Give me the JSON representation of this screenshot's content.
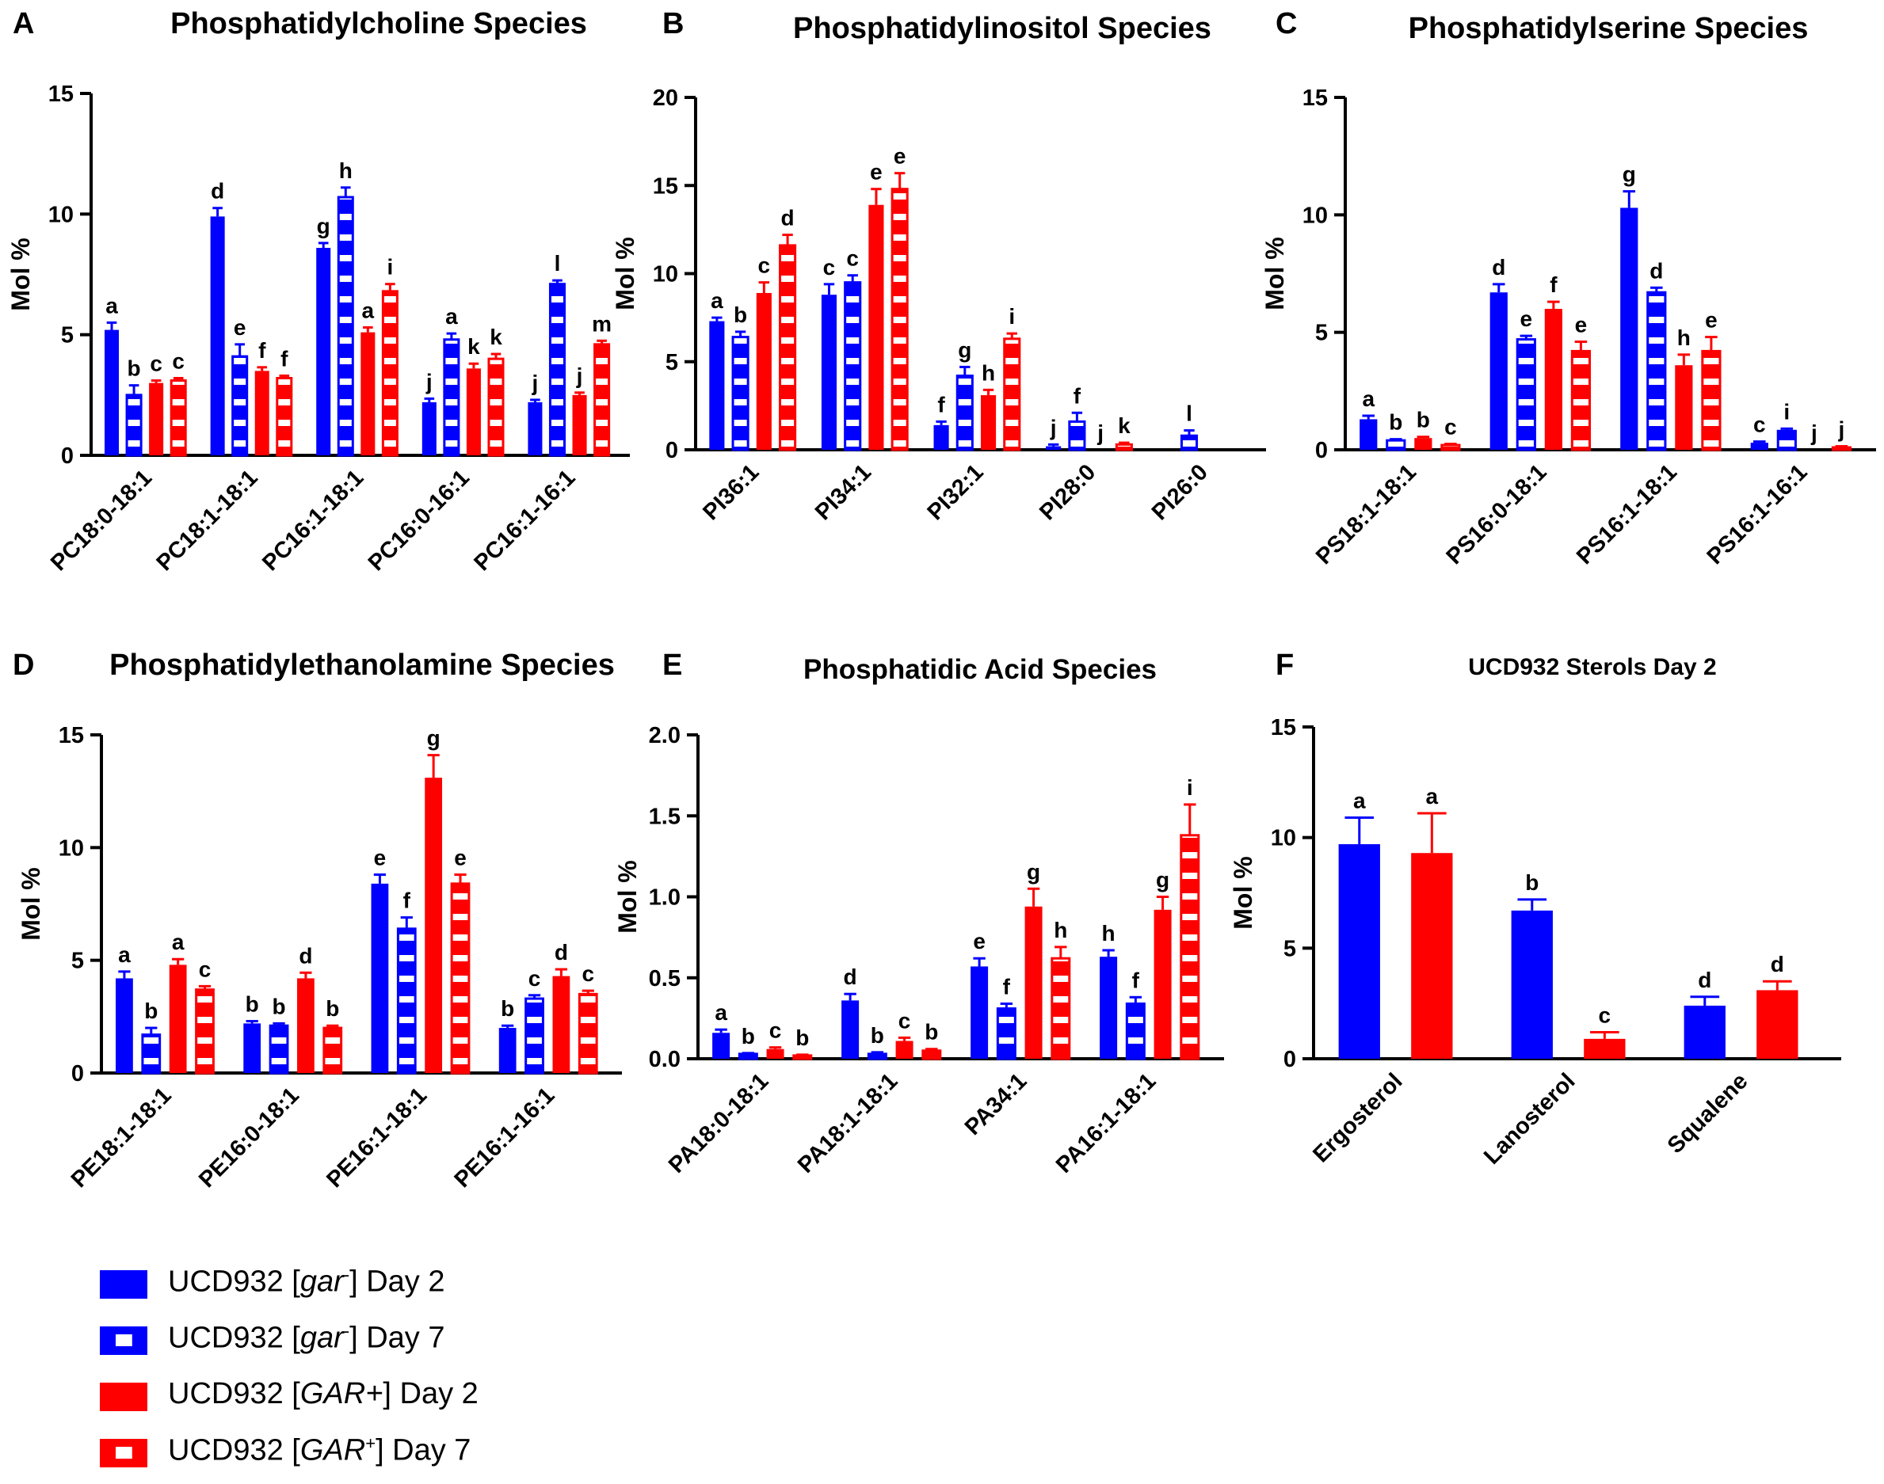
{
  "colors": {
    "blue": "#0000ff",
    "red": "#ff0000",
    "axis": "#000000"
  },
  "legend": [
    {
      "label_pre": "UCD932 [",
      "label_em": "gar",
      "label_sup": "-",
      "label_post": "] Day 2",
      "color": "#0000ff",
      "pattern": "solid"
    },
    {
      "label_pre": "UCD932 [",
      "label_em": "gar",
      "label_sup": "-",
      "label_post": "] Day 7",
      "color": "#0000ff",
      "pattern": "dashed"
    },
    {
      "label_pre": "UCD932 [",
      "label_em": "GAR+",
      "label_sup": "",
      "label_post": "] Day 2",
      "color": "#ff0000",
      "pattern": "solid"
    },
    {
      "label_pre": "UCD932 [",
      "label_em": "GAR",
      "label_sup": "+",
      "label_post": "] Day 7",
      "color": "#ff0000",
      "pattern": "dashed"
    }
  ],
  "chart_data": [
    {
      "panel": "A",
      "type": "bar",
      "title": "Phosphatidylcholine Species",
      "ylabel": "Mol %",
      "ylim": [
        0,
        15
      ],
      "yticks": [
        "0",
        "5",
        "10",
        "15"
      ],
      "categories": [
        "PC18:0-18:1",
        "PC18:1-18:1",
        "PC16:1-18:1",
        "PC16:0-16:1",
        "PC16:1-16:1"
      ],
      "series": [
        {
          "name": "UCD932 [gar-] Day 2",
          "values": [
            5.2,
            9.9,
            8.6,
            2.2,
            2.2
          ],
          "errors": [
            0.3,
            0.35,
            0.2,
            0.15,
            0.1
          ],
          "letters": [
            "a",
            "d",
            "g",
            "j",
            "j"
          ]
        },
        {
          "name": "UCD932 [gar-] Day 7",
          "values": [
            2.5,
            4.1,
            10.7,
            4.8,
            7.1
          ],
          "errors": [
            0.4,
            0.5,
            0.4,
            0.25,
            0.15
          ],
          "letters": [
            "b",
            "e",
            "h",
            "a",
            "l"
          ]
        },
        {
          "name": "UCD932 [GAR+] Day 2",
          "values": [
            3.0,
            3.5,
            5.1,
            3.6,
            2.5
          ],
          "errors": [
            0.1,
            0.15,
            0.2,
            0.2,
            0.1
          ],
          "letters": [
            "c",
            "f",
            "a",
            "k",
            "j"
          ]
        },
        {
          "name": "UCD932 [GAR+] Day 7",
          "values": [
            3.1,
            3.2,
            6.8,
            4.0,
            4.6
          ],
          "errors": [
            0.1,
            0.1,
            0.3,
            0.2,
            0.15
          ],
          "letters": [
            "c",
            "f",
            "i",
            "k",
            "m"
          ]
        }
      ]
    },
    {
      "panel": "B",
      "type": "bar",
      "title": "Phosphatidylinositol Species",
      "ylabel": "Mol %",
      "ylim": [
        0,
        20
      ],
      "yticks": [
        "0",
        "5",
        "10",
        "15",
        "20"
      ],
      "categories": [
        "PI36:1",
        "PI34:1",
        "PI32:1",
        "PI28:0",
        "PI26:0"
      ],
      "series": [
        {
          "name": "UCD932 [gar-] Day 2",
          "values": [
            7.3,
            8.8,
            1.4,
            0.2,
            0
          ],
          "errors": [
            0.2,
            0.6,
            0.2,
            0.1,
            0
          ],
          "letters": [
            "a",
            "c",
            "f",
            "j",
            ""
          ]
        },
        {
          "name": "UCD932 [gar-] Day 7",
          "values": [
            6.4,
            9.5,
            4.2,
            1.6,
            0.8
          ],
          "errors": [
            0.3,
            0.4,
            0.5,
            0.5,
            0.3
          ],
          "letters": [
            "b",
            "c",
            "g",
            "f",
            "l"
          ]
        },
        {
          "name": "UCD932 [GAR+] Day 2",
          "values": [
            8.9,
            13.9,
            3.1,
            0,
            0
          ],
          "errors": [
            0.6,
            0.9,
            0.3,
            0,
            0
          ],
          "letters": [
            "c",
            "e",
            "h",
            "j",
            ""
          ]
        },
        {
          "name": "UCD932 [GAR+] Day 7",
          "values": [
            11.6,
            14.8,
            6.3,
            0.3,
            0
          ],
          "errors": [
            0.6,
            0.9,
            0.3,
            0.1,
            0
          ],
          "letters": [
            "d",
            "e",
            "i",
            "k",
            ""
          ]
        }
      ]
    },
    {
      "panel": "C",
      "type": "bar",
      "title": "Phosphatidylserine Species",
      "ylabel": "Mol %",
      "ylim": [
        0,
        15
      ],
      "yticks": [
        "0",
        "5",
        "10",
        "15"
      ],
      "categories": [
        "PS18:1-18:1",
        "PS16:0-18:1",
        "PS16:1-18:1",
        "PS16:1-16:1"
      ],
      "series": [
        {
          "name": "UCD932 [gar-] Day 2",
          "values": [
            1.3,
            6.7,
            10.3,
            0.3
          ],
          "errors": [
            0.15,
            0.35,
            0.7,
            0.05
          ],
          "letters": [
            "a",
            "d",
            "g",
            "c"
          ]
        },
        {
          "name": "UCD932 [gar-] Day 7",
          "values": [
            0.4,
            4.7,
            6.7,
            0.8
          ],
          "errors": [
            0.05,
            0.15,
            0.2,
            0.1
          ],
          "letters": [
            "b",
            "e",
            "d",
            "i"
          ]
        },
        {
          "name": "UCD932 [GAR+] Day 2",
          "values": [
            0.5,
            6.0,
            3.6,
            0
          ],
          "errors": [
            0.05,
            0.3,
            0.45,
            0
          ],
          "letters": [
            "b",
            "f",
            "h",
            "j"
          ]
        },
        {
          "name": "UCD932 [GAR+] Day 7",
          "values": [
            0.2,
            4.2,
            4.2,
            0.1
          ],
          "errors": [
            0.05,
            0.4,
            0.6,
            0.05
          ],
          "letters": [
            "c",
            "e",
            "e",
            "j"
          ]
        }
      ]
    },
    {
      "panel": "D",
      "type": "bar",
      "title": "Phosphatidylethanolamine Species",
      "ylabel": "Mol %",
      "ylim": [
        0,
        15
      ],
      "yticks": [
        "0",
        "5",
        "10",
        "15"
      ],
      "categories": [
        "PE18:1-18:1",
        "PE16:0-18:1",
        "PE16:1-18:1",
        "PE16:1-16:1"
      ],
      "series": [
        {
          "name": "UCD932 [gar-] Day 2",
          "values": [
            4.2,
            2.2,
            8.4,
            2.0
          ],
          "errors": [
            0.3,
            0.1,
            0.4,
            0.1
          ],
          "letters": [
            "a",
            "b",
            "e",
            "b"
          ]
        },
        {
          "name": "UCD932 [gar-] Day 7",
          "values": [
            1.7,
            2.1,
            6.4,
            3.3
          ],
          "errors": [
            0.3,
            0.1,
            0.5,
            0.15
          ],
          "letters": [
            "b",
            "b",
            "f",
            "c"
          ]
        },
        {
          "name": "UCD932 [GAR+] Day 2",
          "values": [
            4.8,
            4.2,
            13.1,
            4.3
          ],
          "errors": [
            0.25,
            0.25,
            1.0,
            0.3
          ],
          "letters": [
            "a",
            "d",
            "g",
            "d"
          ]
        },
        {
          "name": "UCD932 [GAR+] Day 7",
          "values": [
            3.7,
            2.0,
            8.4,
            3.5
          ],
          "errors": [
            0.15,
            0.1,
            0.4,
            0.15
          ],
          "letters": [
            "c",
            "b",
            "e",
            "c"
          ]
        }
      ]
    },
    {
      "panel": "E",
      "type": "bar",
      "title": "Phosphatidic Acid Species",
      "ylabel": "Mol %",
      "ylim": [
        0,
        2.0
      ],
      "yticks": [
        "0.0",
        "0.5",
        "1.0",
        "1.5",
        "2.0"
      ],
      "categories": [
        "PA18:0-18:1",
        "PA18:1-18:1",
        "PA34:1",
        "PA16:1-18:1"
      ],
      "series": [
        {
          "name": "UCD932 [gar-] Day 2",
          "values": [
            0.16,
            0.36,
            0.57,
            0.63
          ],
          "errors": [
            0.02,
            0.04,
            0.05,
            0.04
          ],
          "letters": [
            "a",
            "d",
            "e",
            "h"
          ]
        },
        {
          "name": "UCD932 [gar-] Day 7",
          "values": [
            0.03,
            0.03,
            0.31,
            0.34
          ],
          "errors": [
            0.005,
            0.01,
            0.03,
            0.04
          ],
          "letters": [
            "b",
            "b",
            "f",
            "f"
          ]
        },
        {
          "name": "UCD932 [GAR+] Day 2",
          "values": [
            0.06,
            0.11,
            0.94,
            0.92
          ],
          "errors": [
            0.01,
            0.02,
            0.11,
            0.08
          ],
          "letters": [
            "c",
            "c",
            "g",
            "g"
          ]
        },
        {
          "name": "UCD932 [GAR+] Day 7",
          "values": [
            0.02,
            0.05,
            0.62,
            1.38
          ],
          "errors": [
            0.005,
            0.01,
            0.07,
            0.19
          ],
          "letters": [
            "b",
            "b",
            "h",
            "i"
          ]
        }
      ]
    },
    {
      "panel": "F",
      "type": "bar",
      "title": "UCD932 Sterols Day 2",
      "ylabel": "Mol %",
      "ylim": [
        0,
        15
      ],
      "yticks": [
        "0",
        "5",
        "10",
        "15"
      ],
      "categories": [
        "Ergosterol",
        "Lanosterol",
        "Squalene"
      ],
      "series": [
        {
          "name": "UCD932 [gar-] Day 2",
          "values": [
            9.7,
            6.7,
            2.4
          ],
          "errors": [
            1.2,
            0.5,
            0.4
          ],
          "letters": [
            "a",
            "b",
            "d"
          ]
        },
        {
          "name": "UCD932 [GAR+] Day 2",
          "values": [
            9.3,
            0.9,
            3.1
          ],
          "errors": [
            1.8,
            0.3,
            0.4
          ],
          "letters": [
            "a",
            "c",
            "d"
          ]
        }
      ]
    }
  ]
}
